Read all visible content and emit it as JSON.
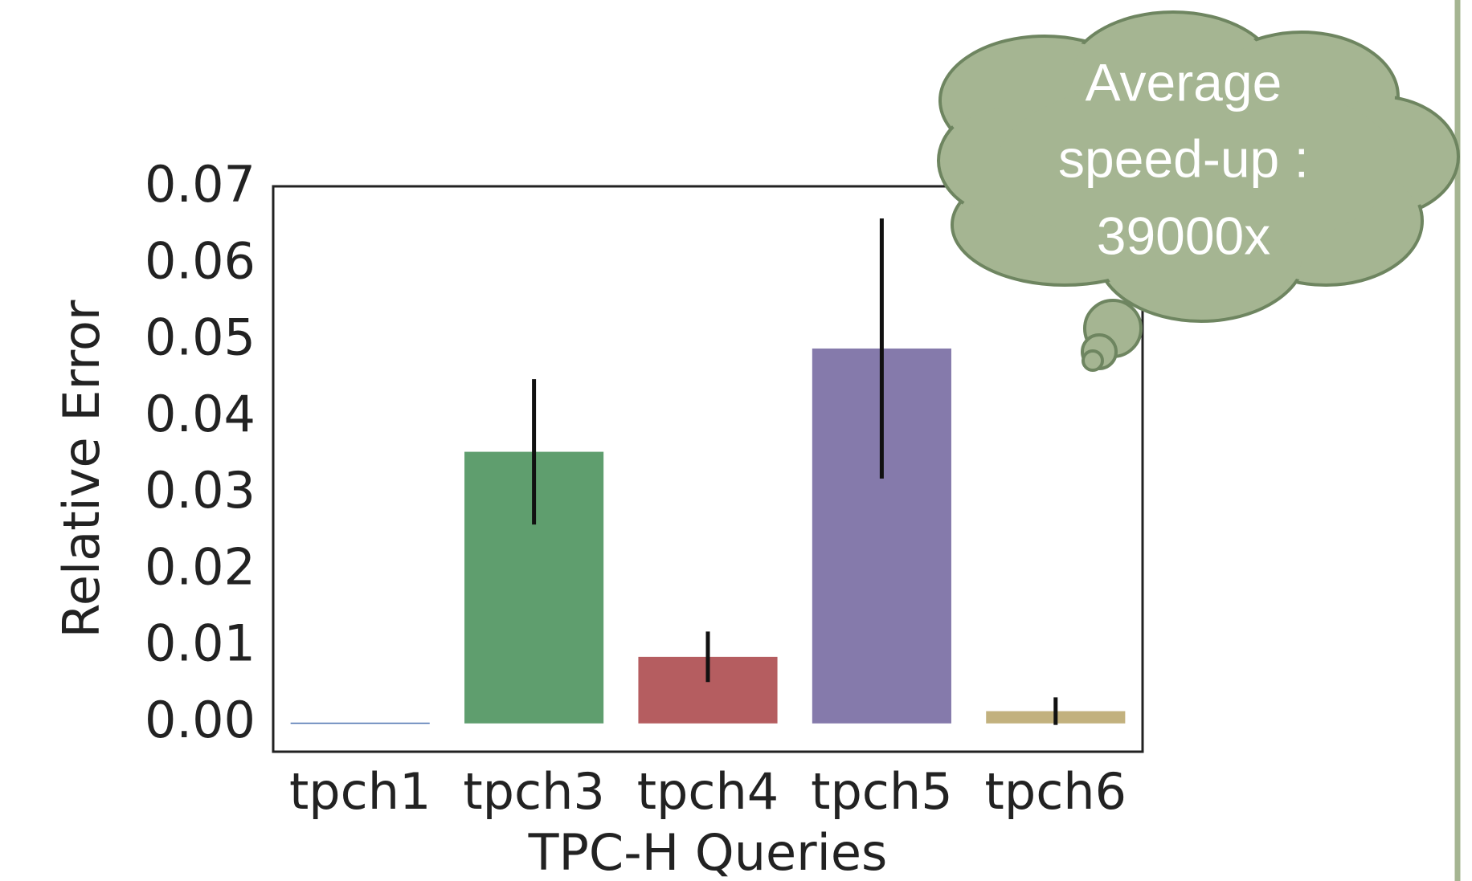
{
  "chart_data": {
    "type": "bar",
    "categories": [
      "tpch1",
      "tpch3",
      "tpch4",
      "tpch5",
      "tpch6"
    ],
    "values": [
      0.0001,
      0.0355,
      0.0087,
      0.049,
      0.0016
    ],
    "errors": [
      0,
      0.0095,
      0.0033,
      0.017,
      0.0018
    ],
    "colors": [
      "#4c72b0",
      "#5f9e6e",
      "#b55d60",
      "#857aab",
      "#c2b17e"
    ],
    "xlabel": "TPC-H Queries",
    "ylabel": "Relative Error",
    "ylim": [
      -0.0037,
      0.0702
    ],
    "yticks": [
      {
        "value": 0,
        "label": "0.00"
      },
      {
        "value": 0.01,
        "label": "0.01"
      },
      {
        "value": 0.02,
        "label": "0.02"
      },
      {
        "value": 0.03,
        "label": "0.03"
      },
      {
        "value": 0.04,
        "label": "0.04"
      },
      {
        "value": 0.05,
        "label": "0.05"
      },
      {
        "value": 0.06,
        "label": "0.06"
      },
      {
        "value": 0.07,
        "label": "0.07"
      }
    ],
    "annotation": [
      "Average",
      "speed-up :",
      "39000x"
    ]
  }
}
